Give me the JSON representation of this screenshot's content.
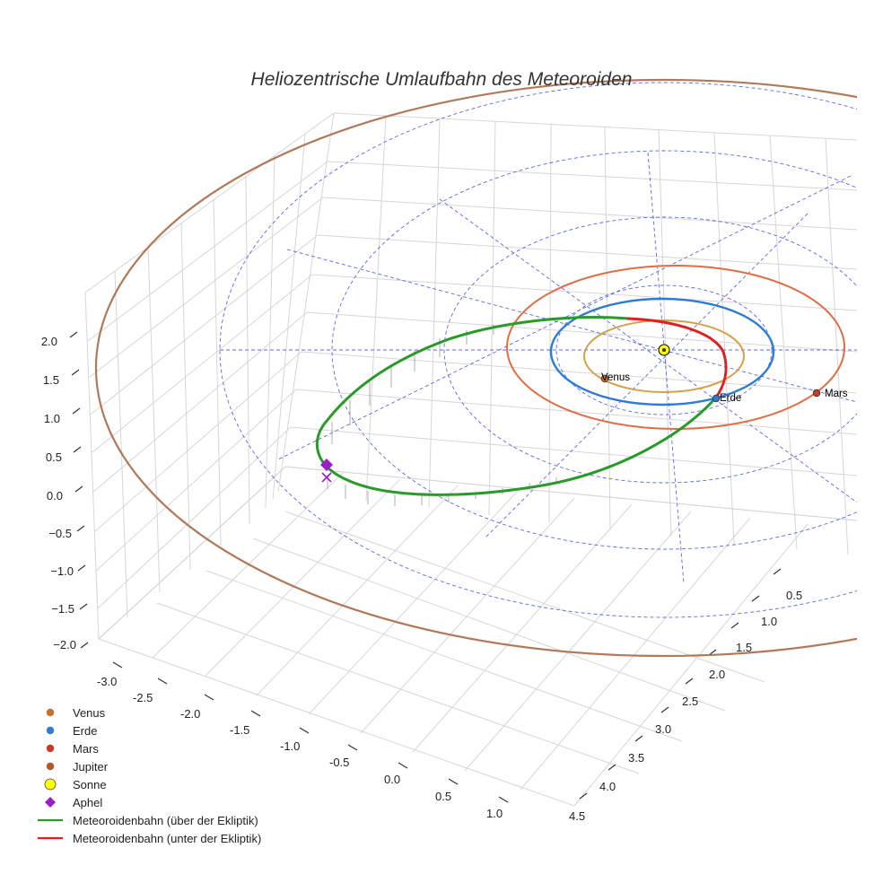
{
  "chart_data": {
    "type": "line3d",
    "title": "Heliozentrische Umlaufbahn des Meteoroiden",
    "x_ticks": [
      "-3.0",
      "-2.5",
      "-2.0",
      "-1.5",
      "-1.0",
      "-0.5",
      "0.0",
      "0.5",
      "1.0"
    ],
    "y_ticks": [
      "0.5",
      "1.0",
      "1.5",
      "2.0",
      "2.5",
      "3.0",
      "3.5",
      "4.0",
      "4.5"
    ],
    "z_ticks": [
      "2.0",
      "1.5",
      "1.0",
      "0.5",
      "0.0",
      "−0.5",
      "−1.0",
      "−1.5",
      "−2.0"
    ],
    "planets": [
      {
        "name": "Venus",
        "label": "Venus",
        "orbit_radius_au": 0.72,
        "color": "#d4a04a",
        "marker_color": "#c8702a"
      },
      {
        "name": "Erde",
        "label": "Erde",
        "orbit_radius_au": 1.0,
        "color": "#2e7cd6",
        "marker_color": "#2e7cd6"
      },
      {
        "name": "Mars",
        "label": "Mars",
        "orbit_radius_au": 1.52,
        "color": "#e06d45",
        "marker_color": "#c83c28"
      },
      {
        "name": "Jupiter",
        "label": "",
        "orbit_radius_au": 5.2,
        "color": "#b07a5a",
        "marker_color": "#b05a2a"
      }
    ],
    "sun": {
      "name": "Sonne",
      "position": [
        0,
        0,
        0
      ],
      "color": "#ffff00"
    },
    "aphelion": {
      "name": "Aphel",
      "color": "#9b1fc8"
    },
    "meteoroid": {
      "above_label": "Meteoroidenbahn (über der Ekliptik)",
      "below_label": "Meteoroidenbahn (unter der Ekliptik)",
      "above_color": "#2a9a2a",
      "below_color": "#e02020"
    },
    "legend": [
      {
        "label": "Venus",
        "kind": "dot",
        "color": "#c8702a"
      },
      {
        "label": "Erde",
        "kind": "dot",
        "color": "#2e7cd6"
      },
      {
        "label": "Mars",
        "kind": "dot",
        "color": "#c83c28"
      },
      {
        "label": "Jupiter",
        "kind": "dot",
        "color": "#b05a2a"
      },
      {
        "label": "Sonne",
        "kind": "sun",
        "color": "#ffff00"
      },
      {
        "label": "Aphel",
        "kind": "diamond",
        "color": "#9b1fc8"
      },
      {
        "label": "Meteoroidenbahn (über der Ekliptik)",
        "kind": "line",
        "color": "#2a9a2a"
      },
      {
        "label": "Meteoroidenbahn (unter der Ekliptik)",
        "kind": "line",
        "color": "#e02020"
      }
    ]
  }
}
